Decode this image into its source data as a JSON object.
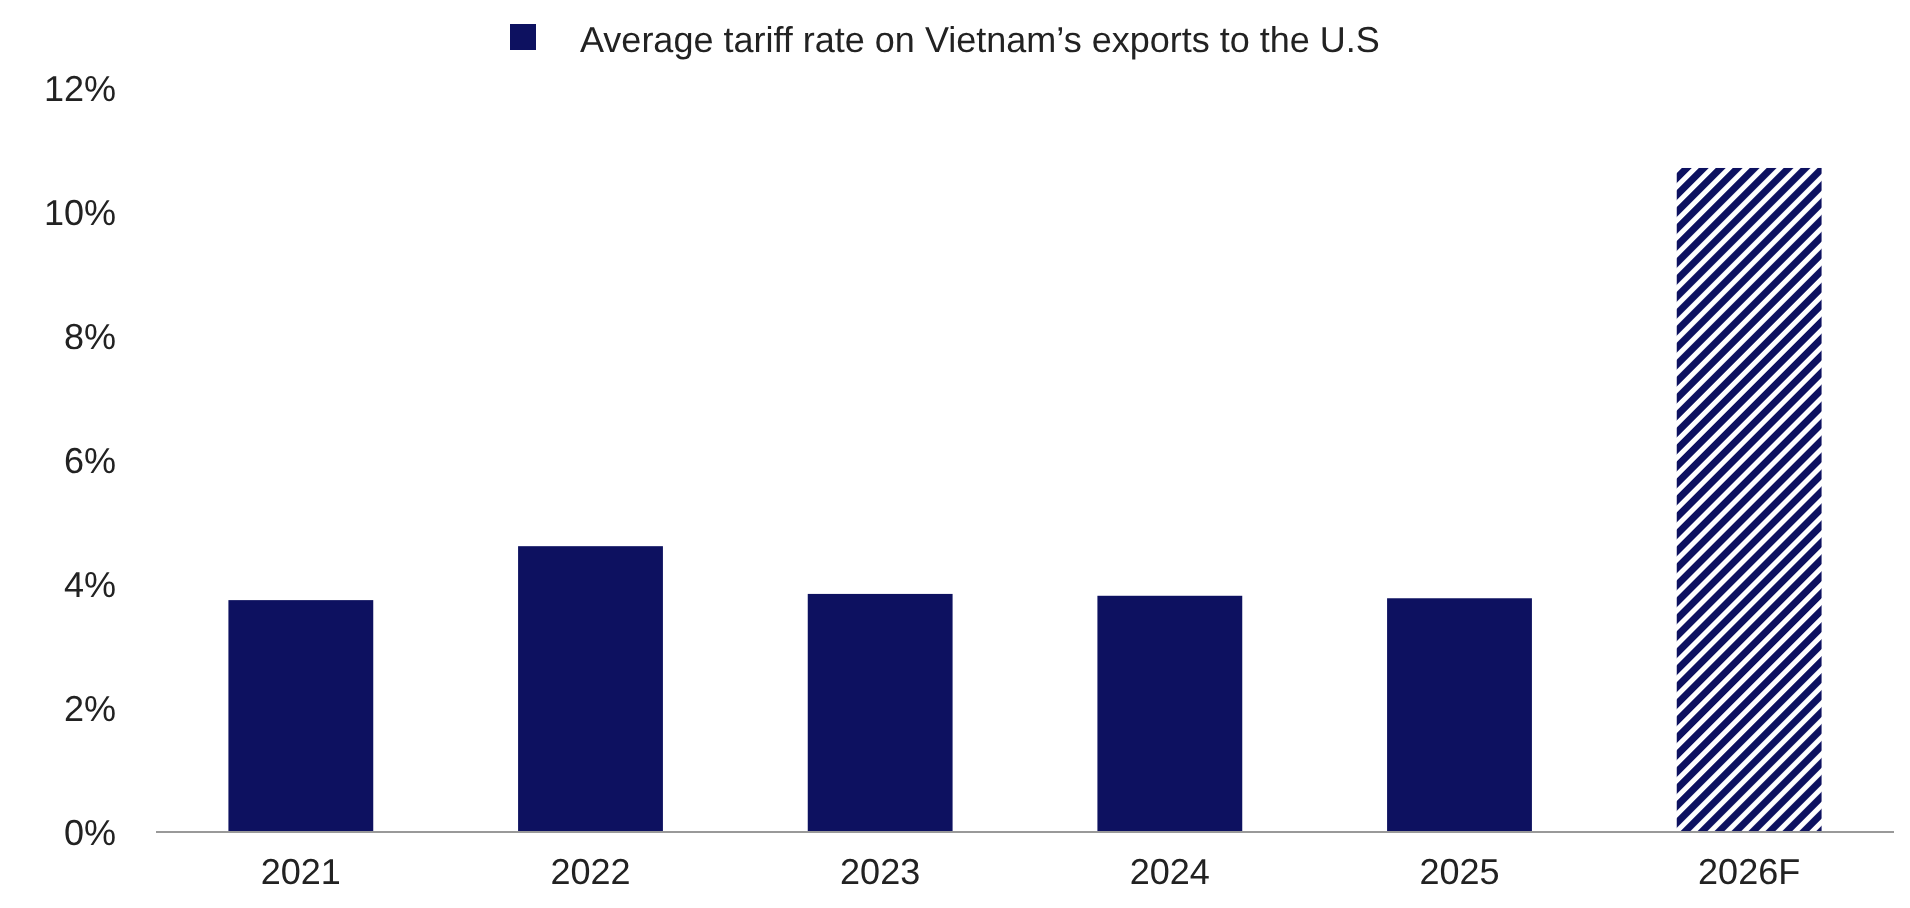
{
  "chart_data": {
    "type": "bar",
    "categories": [
      "2021",
      "2022",
      "2023",
      "2024",
      "2025",
      "2026F"
    ],
    "series": [
      {
        "name": "Average tariff rate on Vietnam’s exports to the U.S",
        "color": "#0d1160",
        "values": [
          3.74,
          4.61,
          3.84,
          3.81,
          3.77,
          null
        ]
      },
      {
        "color": "#0d1160",
        "values": [
          null,
          null,
          null,
          null,
          null,
          10.71
        ]
      }
    ],
    "ylim": [
      0,
      12
    ],
    "yticks": [
      {
        "value": 0,
        "label": "0%"
      },
      {
        "value": 2,
        "label": "2%"
      },
      {
        "value": 4,
        "label": "4%"
      },
      {
        "value": 6,
        "label": "6%"
      },
      {
        "value": 8,
        "label": "8%"
      },
      {
        "value": 10,
        "label": "10%"
      },
      {
        "value": 12,
        "label": "12%"
      }
    ],
    "grid": false,
    "legend": "top"
  }
}
